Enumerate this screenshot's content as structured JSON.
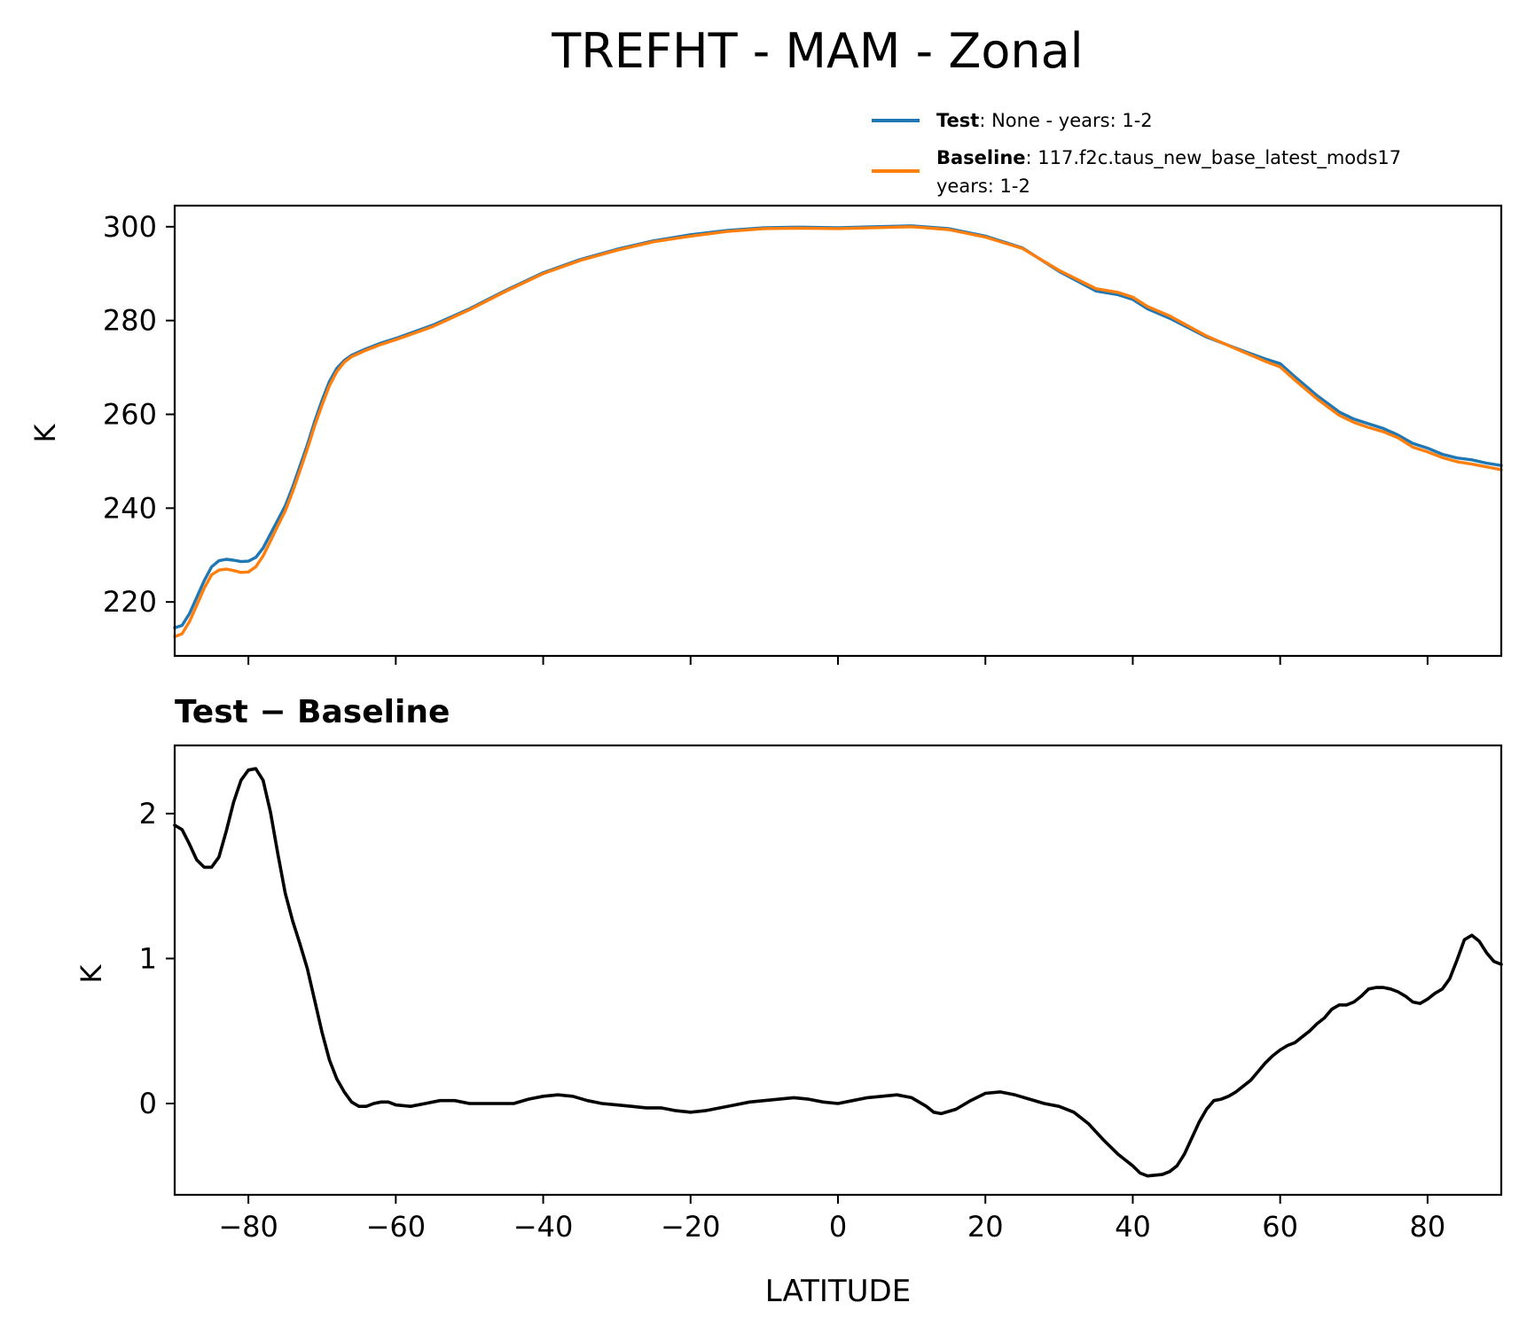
{
  "title": "TREFHT - MAM - Zonal",
  "legend": {
    "placement": "top-right",
    "entries": [
      {
        "label_bold": "Test",
        "label_text": ": None - years: 1-2",
        "label_line2": "",
        "color": "#1f77b4"
      },
      {
        "label_bold": "Baseline",
        "label_text": ": 117.f2c.taus_new_base_latest_mods17",
        "label_line2": "years: 1-2",
        "color": "#ff7f0e"
      }
    ]
  },
  "chart_data": [
    {
      "type": "line",
      "title": "",
      "xlabel": "",
      "ylabel": "K",
      "xlim": [
        -90,
        90
      ],
      "ylim": [
        208.5,
        304.5
      ],
      "yticks": [
        220,
        240,
        260,
        280,
        300
      ],
      "xticks": [
        -80,
        -60,
        -40,
        -20,
        0,
        20,
        40,
        60,
        80
      ],
      "grid": false,
      "series": [
        {
          "name": "Test",
          "color": "#1f77b4",
          "x": [
            -90,
            -89,
            -88,
            -87,
            -86,
            -85,
            -84,
            -83,
            -82,
            -81,
            -80,
            -79,
            -78,
            -77,
            -76,
            -75,
            -74,
            -73,
            -72,
            -71,
            -70,
            -69,
            -68,
            -67,
            -66,
            -65,
            -64,
            -62,
            -60,
            -55,
            -50,
            -45,
            -40,
            -35,
            -30,
            -25,
            -20,
            -15,
            -10,
            -5,
            0,
            5,
            10,
            15,
            20,
            25,
            30,
            35,
            38,
            40,
            42,
            45,
            50,
            55,
            58,
            60,
            62,
            65,
            68,
            70,
            72,
            74,
            76,
            78,
            80,
            82,
            84,
            86,
            88,
            90
          ],
          "y": [
            214.5,
            215.0,
            217.5,
            221.0,
            224.5,
            227.5,
            228.8,
            229.1,
            228.9,
            228.6,
            228.7,
            229.5,
            231.5,
            234.5,
            237.5,
            240.5,
            244.5,
            249.0,
            253.5,
            258.5,
            263.0,
            267.0,
            269.8,
            271.5,
            272.6,
            273.3,
            274.0,
            275.2,
            276.2,
            279.0,
            282.5,
            286.5,
            290.2,
            293.0,
            295.2,
            297.0,
            298.3,
            299.2,
            299.8,
            299.9,
            299.8,
            300.0,
            300.2,
            299.6,
            298.0,
            295.5,
            290.5,
            286.3,
            285.5,
            284.5,
            282.5,
            280.5,
            276.5,
            273.5,
            271.8,
            270.8,
            268.0,
            264.0,
            260.5,
            259.0,
            258.0,
            257.0,
            255.6,
            253.8,
            252.8,
            251.5,
            250.7,
            250.3,
            249.6,
            249.1
          ]
        },
        {
          "name": "Baseline",
          "color": "#ff7f0e",
          "x": [
            -90,
            -89,
            -88,
            -87,
            -86,
            -85,
            -84,
            -83,
            -82,
            -81,
            -80,
            -79,
            -78,
            -77,
            -76,
            -75,
            -74,
            -73,
            -72,
            -71,
            -70,
            -69,
            -68,
            -67,
            -66,
            -65,
            -64,
            -62,
            -60,
            -55,
            -50,
            -45,
            -40,
            -35,
            -30,
            -25,
            -20,
            -15,
            -10,
            -5,
            0,
            5,
            10,
            15,
            20,
            25,
            30,
            35,
            38,
            40,
            42,
            45,
            50,
            55,
            58,
            60,
            62,
            65,
            68,
            70,
            72,
            74,
            76,
            78,
            80,
            82,
            84,
            86,
            88,
            90
          ],
          "y": [
            212.6,
            213.2,
            215.8,
            219.3,
            222.9,
            225.8,
            226.8,
            227.0,
            226.7,
            226.3,
            226.4,
            227.5,
            229.8,
            233.0,
            236.3,
            239.4,
            243.5,
            248.0,
            252.6,
            257.6,
            262.0,
            266.1,
            269.1,
            271.1,
            272.3,
            273.0,
            273.7,
            274.9,
            275.9,
            278.7,
            282.3,
            286.3,
            290.0,
            292.8,
            295.0,
            296.8,
            298.0,
            299.0,
            299.6,
            299.7,
            299.6,
            299.8,
            300.0,
            299.4,
            297.8,
            295.4,
            290.7,
            286.8,
            286.0,
            285.0,
            283.0,
            281.0,
            276.7,
            273.3,
            271.3,
            270.1,
            267.3,
            263.3,
            259.8,
            258.3,
            257.2,
            256.3,
            255.0,
            253.0,
            252.0,
            250.8,
            249.9,
            249.4,
            248.8,
            248.2
          ]
        }
      ]
    },
    {
      "type": "line",
      "title": "Test − Baseline",
      "xlabel": "LATITUDE",
      "ylabel": "K",
      "xlim": [
        -90,
        90
      ],
      "ylim": [
        -0.63,
        2.47
      ],
      "yticks": [
        0,
        1,
        2
      ],
      "xticks": [
        -80,
        -60,
        -40,
        -20,
        0,
        20,
        40,
        60,
        80
      ],
      "xticklabels": [
        "−80",
        "−60",
        "−40",
        "−20",
        "0",
        "20",
        "40",
        "60",
        "80"
      ],
      "grid": false,
      "series": [
        {
          "name": "",
          "color": "#000000",
          "x": [
            -90,
            -89,
            -88,
            -87,
            -86,
            -85,
            -84,
            -83,
            -82,
            -81,
            -80,
            -79,
            -78,
            -77,
            -76,
            -75,
            -74,
            -73,
            -72,
            -71,
            -70,
            -69,
            -68,
            -67,
            -66,
            -65,
            -64,
            -63,
            -62,
            -61,
            -60,
            -58,
            -56,
            -54,
            -52,
            -50,
            -48,
            -46,
            -44,
            -42,
            -40,
            -38,
            -36,
            -34,
            -32,
            -30,
            -28,
            -26,
            -24,
            -22,
            -20,
            -18,
            -16,
            -14,
            -12,
            -10,
            -8,
            -6,
            -4,
            -2,
            0,
            2,
            4,
            6,
            8,
            10,
            12,
            13,
            14,
            16,
            18,
            20,
            22,
            24,
            26,
            28,
            30,
            32,
            33,
            34,
            36,
            38,
            40,
            41,
            42,
            44,
            45,
            46,
            47,
            48,
            49,
            50,
            51,
            52,
            53,
            54,
            55,
            56,
            57,
            58,
            59,
            60,
            61,
            62,
            63,
            64,
            65,
            66,
            67,
            68,
            69,
            70,
            71,
            72,
            73,
            74,
            75,
            76,
            77,
            78,
            79,
            80,
            81,
            82,
            83,
            84,
            85,
            86,
            87,
            88,
            89,
            90
          ],
          "y": [
            1.92,
            1.89,
            1.79,
            1.68,
            1.63,
            1.63,
            1.7,
            1.88,
            2.08,
            2.23,
            2.3,
            2.31,
            2.23,
            2.01,
            1.72,
            1.45,
            1.26,
            1.1,
            0.93,
            0.71,
            0.49,
            0.3,
            0.17,
            0.08,
            0.01,
            -0.02,
            -0.02,
            0.0,
            0.01,
            0.01,
            -0.01,
            -0.02,
            0.0,
            0.02,
            0.02,
            0.0,
            0.0,
            0.0,
            0.0,
            0.03,
            0.05,
            0.06,
            0.05,
            0.02,
            0.0,
            -0.01,
            -0.02,
            -0.03,
            -0.03,
            -0.05,
            -0.06,
            -0.05,
            -0.03,
            -0.01,
            0.01,
            0.02,
            0.03,
            0.04,
            0.03,
            0.01,
            0.0,
            0.02,
            0.04,
            0.05,
            0.06,
            0.04,
            -0.02,
            -0.06,
            -0.07,
            -0.04,
            0.02,
            0.07,
            0.08,
            0.06,
            0.03,
            0.0,
            -0.02,
            -0.06,
            -0.1,
            -0.14,
            -0.25,
            -0.35,
            -0.43,
            -0.48,
            -0.5,
            -0.49,
            -0.47,
            -0.43,
            -0.35,
            -0.24,
            -0.13,
            -0.04,
            0.02,
            0.03,
            0.05,
            0.08,
            0.12,
            0.16,
            0.22,
            0.28,
            0.33,
            0.37,
            0.4,
            0.42,
            0.46,
            0.5,
            0.55,
            0.59,
            0.65,
            0.68,
            0.68,
            0.7,
            0.74,
            0.79,
            0.8,
            0.8,
            0.79,
            0.77,
            0.74,
            0.7,
            0.69,
            0.72,
            0.76,
            0.79,
            0.86,
            0.99,
            1.13,
            1.16,
            1.12,
            1.04,
            0.98,
            0.96
          ]
        }
      ]
    }
  ]
}
